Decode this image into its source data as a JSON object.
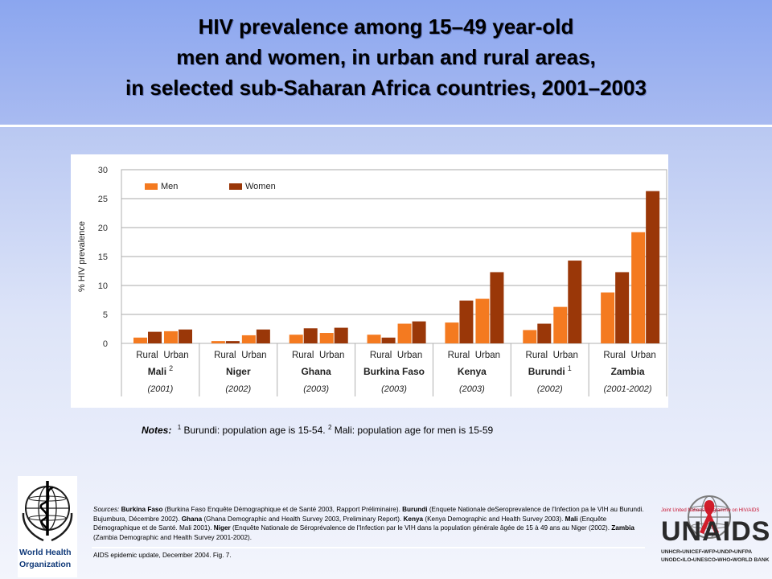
{
  "title": {
    "line1": "HIV prevalence among 15–49 year-old",
    "line2": "men and women, in urban and rural areas,",
    "line3": "in selected sub-Saharan Africa countries, 2001–2003"
  },
  "chart_data": {
    "type": "bar",
    "ylabel": "% HIV prevalence",
    "ylim": [
      0,
      30
    ],
    "yticks": [
      0,
      5,
      10,
      15,
      20,
      25,
      30
    ],
    "grid": true,
    "legend_position": "top-left",
    "legend": [
      "Men",
      "Women"
    ],
    "colors": {
      "men": "#f47a20",
      "women": "#9a3708"
    },
    "countries": [
      {
        "name": "Mali",
        "superscript": "2",
        "year": "(2001)"
      },
      {
        "name": "Niger",
        "superscript": "",
        "year": "(2002)"
      },
      {
        "name": "Ghana",
        "superscript": "",
        "year": "(2003)"
      },
      {
        "name": "Burkina Faso",
        "superscript": "",
        "year": "(2003)"
      },
      {
        "name": "Kenya",
        "superscript": "",
        "year": "(2003)"
      },
      {
        "name": "Burundi",
        "superscript": "1",
        "year": "(2002)"
      },
      {
        "name": "Zambia",
        "superscript": "",
        "year": "(2001-2002)"
      }
    ],
    "settings": [
      "Rural",
      "Urban"
    ],
    "categories": [
      "Mali Rural",
      "Mali Urban",
      "Niger Rural",
      "Niger Urban",
      "Ghana Rural",
      "Ghana Urban",
      "Burkina Faso Rural",
      "Burkina Faso Urban",
      "Kenya Rural",
      "Kenya Urban",
      "Burundi Rural",
      "Burundi Urban",
      "Zambia Rural",
      "Zambia Urban"
    ],
    "series": [
      {
        "name": "Men",
        "values": [
          1.0,
          2.1,
          0.4,
          1.4,
          1.5,
          1.8,
          1.5,
          3.4,
          3.6,
          7.7,
          2.3,
          6.3,
          8.8,
          19.2
        ]
      },
      {
        "name": "Women",
        "values": [
          2.0,
          2.4,
          0.4,
          2.4,
          2.6,
          2.7,
          1.0,
          3.8,
          7.4,
          12.3,
          3.4,
          14.3,
          12.3,
          26.3
        ]
      }
    ]
  },
  "notes": {
    "label": "Notes:",
    "sup1": "1",
    "text1": "Burundi: population age is 15-54.",
    "sup2": "2",
    "text2": "Mali: population age for men is 15-59"
  },
  "sources": {
    "label": "Sources:",
    "bf_name": "Burkina Faso",
    "bf_text": "(Burkina Faso Enquête Démographique et de Santé 2003, Rapport Préliminaire).",
    "bu_name": "Burundi",
    "bu_text": "(Enquete Nationale deSeroprevalence de l'Infection pa le VIH au Burundi.  Bujumbura, Décembre 2002).",
    "gh_name": "Ghana",
    "gh_text": "(Ghana Demographic and Health Survey 2003, Preliminary Report).",
    "ke_name": "Kenya",
    "ke_text": "(Kenya Demographic and Health Survey 2003).",
    "ma_name": "Mali",
    "ma_text": "(Enquête Démographique et de Santé.  Mali 2001).",
    "ni_name": "Niger",
    "ni_text": "(Enquête Nationale de Séroprévalence de l'Infection par le VIH dans la population générale âgée de 15 à 49 ans au Niger (2002).",
    "za_name": "Zambia",
    "za_text": "(Zambia Demographic and Health Survey 2001-2002)."
  },
  "citation": "AIDS epidemic update, December 2004.  Fig. 7.",
  "logos": {
    "who_line1": "World Health",
    "who_line2": "Organization",
    "unaids_sub": "Joint United Nations Programme on HIV/AIDS",
    "unaids_word": "UNAIDS",
    "unaids_members1": "UNHCR•UNICEF•WFP•UNDP•UNFPA",
    "unaids_members2": "UNODC•ILO•UNESCO•WHO•WORLD BANK"
  }
}
